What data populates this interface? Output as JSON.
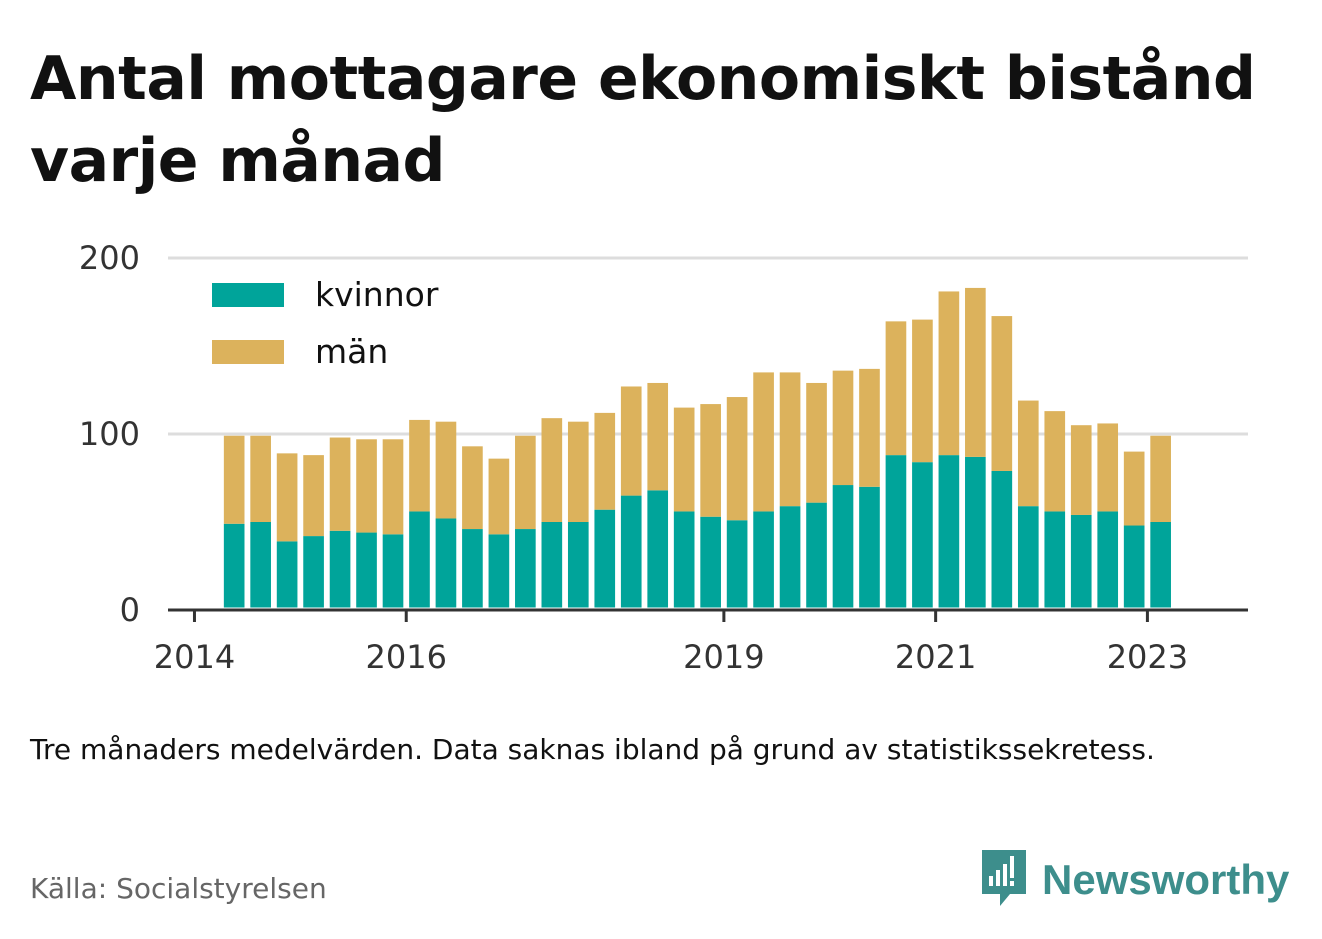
{
  "title": "Antal mottagare ekonomiskt bistånd varje månad",
  "note": "Tre månaders medelvärden. Data saknas ibland på grund av statistikssekretess.",
  "source": "Källa: Socialstyrelsen",
  "brand": "Newsworthy",
  "colors": {
    "kvinnor": "#00a49a",
    "man": "#dcb25c",
    "grid": "#dddddd",
    "axis": "#333333",
    "brand": "#3d8e8c"
  },
  "chart_data": {
    "type": "bar",
    "stacked": true,
    "ylim": [
      0,
      200
    ],
    "yticks": [
      0,
      100,
      200
    ],
    "xlim": [
      2014.0,
      2024.2
    ],
    "xticks": [
      {
        "label": "2014",
        "value": 2014.25
      },
      {
        "label": "2016",
        "value": 2016.25
      },
      {
        "label": "2019",
        "value": 2019.25
      },
      {
        "label": "2021",
        "value": 2021.25
      },
      {
        "label": "2023",
        "value": 2023.25
      }
    ],
    "legend": {
      "position": "top-left"
    },
    "grid": true,
    "x": [
      2014.625,
      2014.875,
      2015.125,
      2015.375,
      2015.625,
      2015.875,
      2016.125,
      2016.375,
      2016.625,
      2016.875,
      2017.125,
      2017.375,
      2017.625,
      2017.875,
      2018.125,
      2018.375,
      2018.625,
      2018.875,
      2019.125,
      2019.375,
      2019.625,
      2019.875,
      2020.125,
      2020.375,
      2020.625,
      2020.875,
      2021.125,
      2021.375,
      2021.625,
      2021.875,
      2022.125,
      2022.375,
      2022.625,
      2022.875,
      2023.125,
      2023.375
    ],
    "series": [
      {
        "name": "kvinnor",
        "color": "#00a49a",
        "values": [
          49,
          50,
          39,
          42,
          45,
          44,
          43,
          56,
          52,
          46,
          43,
          46,
          50,
          50,
          57,
          65,
          68,
          56,
          53,
          51,
          56,
          59,
          61,
          71,
          70,
          88,
          84,
          88,
          87,
          79,
          59,
          56,
          54,
          56,
          48,
          50
        ]
      },
      {
        "name": "män",
        "color": "#dcb25c",
        "values": [
          50,
          49,
          50,
          46,
          53,
          53,
          54,
          52,
          55,
          47,
          43,
          53,
          59,
          57,
          55,
          62,
          61,
          59,
          64,
          70,
          79,
          76,
          68,
          65,
          67,
          76,
          81,
          93,
          96,
          88,
          60,
          57,
          51,
          50,
          42,
          49
        ]
      }
    ]
  }
}
